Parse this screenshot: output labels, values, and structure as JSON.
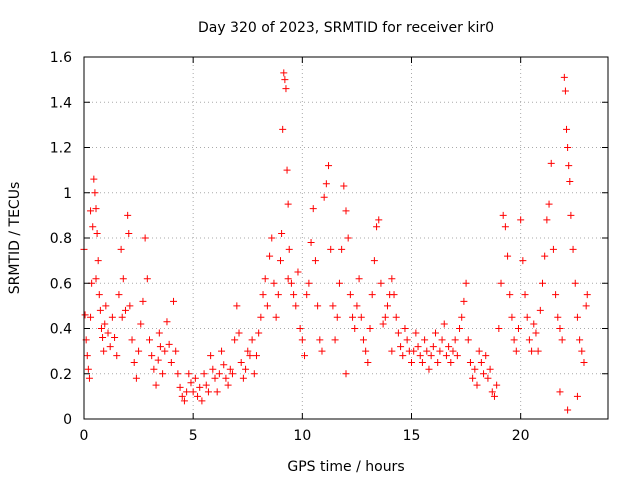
{
  "chart_data": {
    "type": "scatter",
    "title": "Day 320 of 2023, SRMTID for receiver kir0",
    "xlabel": "GPS time / hours",
    "ylabel": "SRMTID / TECUs",
    "xlim": [
      0,
      24
    ],
    "ylim": [
      0,
      1.6
    ],
    "x_ticks": [
      0,
      5,
      10,
      15,
      20
    ],
    "y_ticks": [
      0,
      0.2,
      0.4,
      0.6,
      0.8,
      1,
      1.2,
      1.4,
      1.6
    ],
    "x_tick_labels": [
      "0",
      "5",
      "10",
      "15",
      "20"
    ],
    "y_tick_labels": [
      "0",
      "0.2",
      "0.4",
      "0.6",
      "0.8",
      "1",
      "1.2",
      "1.4",
      "1.6"
    ],
    "grid": true,
    "marker": "plus",
    "series": [
      {
        "name": "SRMTID",
        "color": "#ff0000",
        "points": [
          [
            0.0,
            0.75
          ],
          [
            0.05,
            0.46
          ],
          [
            0.1,
            0.35
          ],
          [
            0.15,
            0.28
          ],
          [
            0.2,
            0.22
          ],
          [
            0.25,
            0.18
          ],
          [
            0.3,
            0.45
          ],
          [
            0.35,
            0.6
          ],
          [
            0.4,
            0.85
          ],
          [
            0.45,
            1.06
          ],
          [
            0.5,
            1.0
          ],
          [
            0.55,
            0.93
          ],
          [
            0.6,
            0.82
          ],
          [
            0.65,
            0.7
          ],
          [
            0.7,
            0.55
          ],
          [
            0.75,
            0.48
          ],
          [
            0.8,
            0.4
          ],
          [
            0.85,
            0.36
          ],
          [
            0.9,
            0.3
          ],
          [
            0.95,
            0.42
          ],
          [
            1.0,
            0.5
          ],
          [
            1.1,
            0.38
          ],
          [
            1.2,
            0.32
          ],
          [
            1.3,
            0.45
          ],
          [
            1.4,
            0.36
          ],
          [
            1.5,
            0.28
          ],
          [
            1.6,
            0.55
          ],
          [
            1.7,
            0.75
          ],
          [
            1.8,
            0.62
          ],
          [
            1.9,
            0.48
          ],
          [
            2.0,
            0.9
          ],
          [
            2.05,
            0.82
          ],
          [
            2.1,
            0.5
          ],
          [
            2.2,
            0.35
          ],
          [
            2.3,
            0.25
          ],
          [
            2.4,
            0.18
          ],
          [
            2.5,
            0.3
          ],
          [
            2.6,
            0.42
          ],
          [
            2.7,
            0.52
          ],
          [
            2.8,
            0.8
          ],
          [
            2.9,
            0.62
          ],
          [
            3.0,
            0.35
          ],
          [
            3.1,
            0.28
          ],
          [
            3.2,
            0.22
          ],
          [
            3.3,
            0.15
          ],
          [
            3.4,
            0.26
          ],
          [
            3.5,
            0.32
          ],
          [
            3.6,
            0.2
          ],
          [
            3.7,
            0.3
          ],
          [
            3.8,
            0.43
          ],
          [
            3.9,
            0.33
          ],
          [
            4.0,
            0.25
          ],
          [
            4.1,
            0.52
          ],
          [
            4.2,
            0.3
          ],
          [
            4.3,
            0.2
          ],
          [
            4.4,
            0.14
          ],
          [
            4.5,
            0.1
          ],
          [
            4.6,
            0.08
          ],
          [
            4.7,
            0.12
          ],
          [
            4.8,
            0.2
          ],
          [
            4.9,
            0.16
          ],
          [
            5.0,
            0.12
          ],
          [
            5.1,
            0.18
          ],
          [
            5.2,
            0.1
          ],
          [
            5.3,
            0.14
          ],
          [
            5.4,
            0.08
          ],
          [
            5.5,
            0.2
          ],
          [
            5.6,
            0.15
          ],
          [
            5.7,
            0.12
          ],
          [
            5.8,
            0.28
          ],
          [
            5.9,
            0.22
          ],
          [
            6.0,
            0.18
          ],
          [
            6.1,
            0.12
          ],
          [
            6.2,
            0.2
          ],
          [
            6.3,
            0.3
          ],
          [
            6.4,
            0.24
          ],
          [
            6.5,
            0.18
          ],
          [
            6.6,
            0.15
          ],
          [
            6.7,
            0.22
          ],
          [
            6.8,
            0.2
          ],
          [
            6.9,
            0.35
          ],
          [
            7.0,
            0.5
          ],
          [
            7.1,
            0.38
          ],
          [
            7.2,
            0.25
          ],
          [
            7.3,
            0.18
          ],
          [
            7.4,
            0.22
          ],
          [
            7.5,
            0.3
          ],
          [
            7.6,
            0.28
          ],
          [
            7.7,
            0.35
          ],
          [
            7.8,
            0.2
          ],
          [
            7.9,
            0.28
          ],
          [
            8.0,
            0.38
          ],
          [
            8.1,
            0.45
          ],
          [
            8.2,
            0.55
          ],
          [
            8.3,
            0.62
          ],
          [
            8.4,
            0.5
          ],
          [
            8.5,
            0.72
          ],
          [
            8.6,
            0.8
          ],
          [
            8.7,
            0.6
          ],
          [
            8.8,
            0.45
          ],
          [
            8.9,
            0.55
          ],
          [
            9.0,
            0.7
          ],
          [
            9.05,
            0.82
          ],
          [
            9.1,
            1.28
          ],
          [
            9.15,
            1.53
          ],
          [
            9.2,
            1.5
          ],
          [
            9.25,
            1.46
          ],
          [
            9.3,
            1.1
          ],
          [
            9.35,
            0.95
          ],
          [
            9.4,
            0.75
          ],
          [
            9.5,
            0.6
          ],
          [
            9.6,
            0.55
          ],
          [
            9.7,
            0.5
          ],
          [
            9.8,
            0.65
          ],
          [
            9.9,
            0.4
          ],
          [
            10.0,
            0.35
          ],
          [
            10.1,
            0.28
          ],
          [
            10.2,
            0.55
          ],
          [
            10.3,
            0.6
          ],
          [
            10.4,
            0.78
          ],
          [
            10.5,
            0.93
          ],
          [
            10.6,
            0.7
          ],
          [
            10.7,
            0.5
          ],
          [
            10.8,
            0.35
          ],
          [
            10.9,
            0.3
          ],
          [
            11.0,
            0.98
          ],
          [
            11.1,
            1.04
          ],
          [
            11.2,
            1.12
          ],
          [
            11.3,
            0.75
          ],
          [
            11.4,
            0.5
          ],
          [
            11.5,
            0.35
          ],
          [
            11.6,
            0.45
          ],
          [
            11.7,
            0.6
          ],
          [
            11.8,
            0.75
          ],
          [
            11.9,
            1.03
          ],
          [
            12.0,
            0.92
          ],
          [
            12.1,
            0.8
          ],
          [
            12.2,
            0.55
          ],
          [
            12.3,
            0.45
          ],
          [
            12.4,
            0.4
          ],
          [
            12.5,
            0.5
          ],
          [
            12.6,
            0.62
          ],
          [
            12.7,
            0.45
          ],
          [
            12.8,
            0.35
          ],
          [
            12.9,
            0.3
          ],
          [
            13.0,
            0.25
          ],
          [
            13.1,
            0.4
          ],
          [
            13.2,
            0.55
          ],
          [
            13.3,
            0.7
          ],
          [
            13.4,
            0.85
          ],
          [
            13.5,
            0.88
          ],
          [
            13.6,
            0.6
          ],
          [
            13.7,
            0.42
          ],
          [
            13.8,
            0.45
          ],
          [
            13.9,
            0.5
          ],
          [
            14.0,
            0.55
          ],
          [
            14.1,
            0.62
          ],
          [
            14.2,
            0.55
          ],
          [
            14.3,
            0.45
          ],
          [
            14.4,
            0.38
          ],
          [
            14.5,
            0.32
          ],
          [
            14.6,
            0.28
          ],
          [
            14.7,
            0.4
          ],
          [
            14.8,
            0.35
          ],
          [
            14.9,
            0.3
          ],
          [
            15.0,
            0.25
          ],
          [
            15.1,
            0.3
          ],
          [
            15.2,
            0.38
          ],
          [
            15.3,
            0.32
          ],
          [
            15.4,
            0.28
          ],
          [
            15.5,
            0.25
          ],
          [
            15.6,
            0.35
          ],
          [
            15.7,
            0.3
          ],
          [
            15.8,
            0.22
          ],
          [
            15.9,
            0.28
          ],
          [
            16.0,
            0.32
          ],
          [
            16.1,
            0.38
          ],
          [
            16.2,
            0.25
          ],
          [
            16.3,
            0.3
          ],
          [
            16.4,
            0.35
          ],
          [
            16.5,
            0.42
          ],
          [
            16.6,
            0.28
          ],
          [
            16.7,
            0.32
          ],
          [
            16.8,
            0.25
          ],
          [
            16.9,
            0.3
          ],
          [
            17.0,
            0.35
          ],
          [
            17.1,
            0.28
          ],
          [
            17.2,
            0.4
          ],
          [
            17.3,
            0.45
          ],
          [
            17.4,
            0.52
          ],
          [
            17.5,
            0.6
          ],
          [
            17.6,
            0.35
          ],
          [
            17.7,
            0.25
          ],
          [
            17.8,
            0.18
          ],
          [
            17.9,
            0.22
          ],
          [
            18.0,
            0.15
          ],
          [
            18.1,
            0.3
          ],
          [
            18.2,
            0.25
          ],
          [
            18.3,
            0.2
          ],
          [
            18.4,
            0.28
          ],
          [
            18.5,
            0.18
          ],
          [
            18.6,
            0.22
          ],
          [
            18.7,
            0.12
          ],
          [
            18.8,
            0.1
          ],
          [
            18.9,
            0.15
          ],
          [
            19.0,
            0.4
          ],
          [
            19.1,
            0.6
          ],
          [
            19.2,
            0.9
          ],
          [
            19.3,
            0.85
          ],
          [
            19.4,
            0.72
          ],
          [
            19.5,
            0.55
          ],
          [
            19.6,
            0.45
          ],
          [
            19.7,
            0.35
          ],
          [
            19.8,
            0.3
          ],
          [
            19.9,
            0.4
          ],
          [
            20.0,
            0.88
          ],
          [
            20.1,
            0.7
          ],
          [
            20.2,
            0.55
          ],
          [
            20.3,
            0.45
          ],
          [
            20.4,
            0.35
          ],
          [
            20.5,
            0.3
          ],
          [
            20.6,
            0.42
          ],
          [
            20.7,
            0.38
          ],
          [
            20.8,
            0.3
          ],
          [
            20.9,
            0.48
          ],
          [
            21.0,
            0.6
          ],
          [
            21.1,
            0.72
          ],
          [
            21.2,
            0.88
          ],
          [
            21.3,
            0.95
          ],
          [
            21.4,
            1.13
          ],
          [
            21.5,
            0.75
          ],
          [
            21.6,
            0.55
          ],
          [
            21.7,
            0.45
          ],
          [
            21.8,
            0.4
          ],
          [
            21.9,
            0.35
          ],
          [
            22.0,
            1.51
          ],
          [
            22.05,
            1.45
          ],
          [
            22.1,
            1.28
          ],
          [
            22.15,
            1.2
          ],
          [
            22.2,
            1.12
          ],
          [
            22.25,
            1.05
          ],
          [
            22.3,
            0.9
          ],
          [
            22.4,
            0.75
          ],
          [
            22.5,
            0.6
          ],
          [
            22.6,
            0.45
          ],
          [
            22.7,
            0.35
          ],
          [
            22.8,
            0.3
          ],
          [
            22.9,
            0.25
          ],
          [
            23.0,
            0.5
          ],
          [
            23.05,
            0.55
          ],
          [
            22.15,
            0.04
          ],
          [
            22.6,
            0.1
          ],
          [
            21.8,
            0.12
          ],
          [
            0.3,
            0.92
          ],
          [
            0.55,
            0.62
          ],
          [
            1.75,
            0.45
          ],
          [
            3.45,
            0.38
          ],
          [
            9.35,
            0.62
          ],
          [
            12.0,
            0.2
          ],
          [
            14.1,
            0.3
          ]
        ]
      }
    ]
  }
}
